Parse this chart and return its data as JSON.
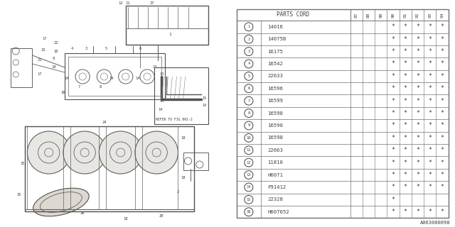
{
  "diagram_ref": "A063000098",
  "col_headers": [
    "87",
    "88",
    "90",
    "90",
    "91",
    "92",
    "93",
    "94"
  ],
  "rows": [
    {
      "num": 1,
      "part": "14016",
      "marks": [
        0,
        0,
        0,
        1,
        1,
        1,
        1,
        1
      ]
    },
    {
      "num": 2,
      "part": "14075B",
      "marks": [
        0,
        0,
        0,
        1,
        1,
        1,
        1,
        1
      ]
    },
    {
      "num": 3,
      "part": "16175",
      "marks": [
        0,
        0,
        0,
        1,
        1,
        1,
        1,
        1
      ]
    },
    {
      "num": 4,
      "part": "16542",
      "marks": [
        0,
        0,
        0,
        1,
        1,
        1,
        1,
        1
      ]
    },
    {
      "num": 5,
      "part": "22633",
      "marks": [
        0,
        0,
        0,
        1,
        1,
        1,
        1,
        1
      ]
    },
    {
      "num": 6,
      "part": "16596",
      "marks": [
        0,
        0,
        0,
        1,
        1,
        1,
        1,
        1
      ]
    },
    {
      "num": 7,
      "part": "16599",
      "marks": [
        0,
        0,
        0,
        1,
        1,
        1,
        1,
        1
      ]
    },
    {
      "num": 8,
      "part": "16598",
      "marks": [
        0,
        0,
        0,
        1,
        1,
        1,
        1,
        1
      ]
    },
    {
      "num": 9,
      "part": "16590",
      "marks": [
        0,
        0,
        0,
        1,
        1,
        1,
        1,
        1
      ]
    },
    {
      "num": 10,
      "part": "16598",
      "marks": [
        0,
        0,
        0,
        1,
        1,
        1,
        1,
        1
      ]
    },
    {
      "num": 11,
      "part": "22663",
      "marks": [
        0,
        0,
        0,
        1,
        1,
        1,
        1,
        1
      ]
    },
    {
      "num": 12,
      "part": "11810",
      "marks": [
        0,
        0,
        0,
        1,
        1,
        1,
        1,
        1
      ]
    },
    {
      "num": 13,
      "part": "H6071",
      "marks": [
        0,
        0,
        0,
        1,
        1,
        1,
        1,
        1
      ]
    },
    {
      "num": 14,
      "part": "F91412",
      "marks": [
        0,
        0,
        0,
        1,
        1,
        1,
        1,
        1
      ]
    },
    {
      "num": 15,
      "part": "22328",
      "marks": [
        0,
        0,
        0,
        1,
        0,
        0,
        0,
        0
      ]
    },
    {
      "num": 16,
      "part": "H607652",
      "marks": [
        0,
        0,
        0,
        1,
        1,
        1,
        1,
        1
      ]
    }
  ],
  "bg_color": "#ffffff",
  "line_color": "#707070",
  "text_color": "#404040",
  "diagram_bg": "#f0eeea"
}
